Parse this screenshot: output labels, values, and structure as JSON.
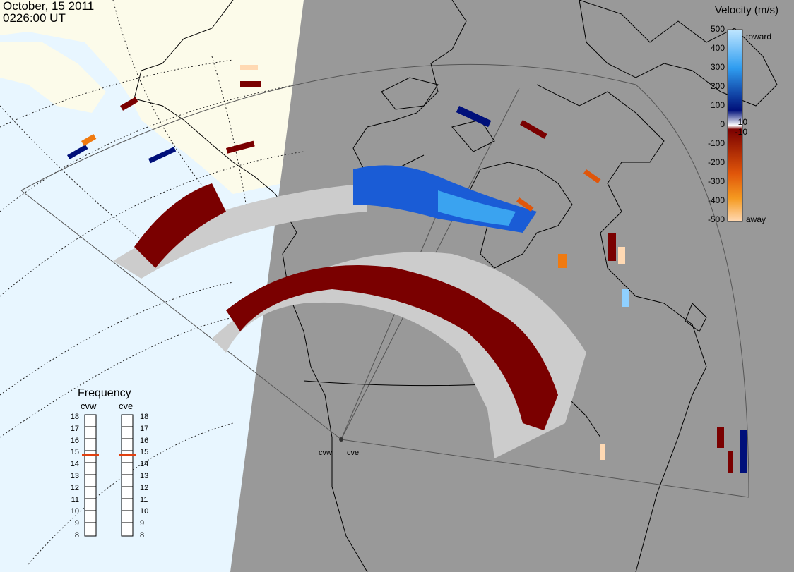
{
  "header": {
    "date": "October, 15 2011",
    "time": "0226:00 UT"
  },
  "velocity_scale": {
    "title": "Velocity (m/s)",
    "ticks": [
      "500",
      "400",
      "300",
      "200",
      "100",
      "10",
      "0",
      "-10",
      "-100",
      "-200",
      "-300",
      "-400",
      "-500"
    ],
    "toward_label": "toward",
    "away_label": "away",
    "colors": {
      "toward_light": "#bfe6ff",
      "toward_mid": "#2f9df0",
      "toward_dark": "#00107a",
      "away_dark": "#7a0000",
      "away_mid": "#e0560a",
      "away_light": "#ffd9b3",
      "ground_scatter": "#cccccc"
    }
  },
  "frequency": {
    "title": "Frequency",
    "radars": [
      {
        "name": "cvw",
        "selected": 15
      },
      {
        "name": "cve",
        "selected": 15
      }
    ],
    "levels": [
      "18",
      "17",
      "16",
      "15",
      "14",
      "13",
      "12",
      "11",
      "10",
      "9",
      "8"
    ],
    "marker_color": "#e04010"
  },
  "sites": [
    "cvw",
    "cve"
  ],
  "colors": {
    "night": "#999999",
    "day_ocean": "#e8f6ff",
    "day_land": "#fcfbea"
  }
}
